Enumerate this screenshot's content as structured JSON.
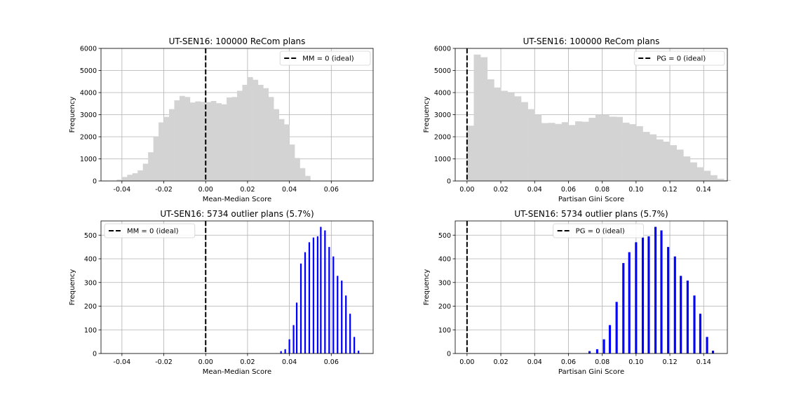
{
  "chart_data": [
    {
      "type": "histogram",
      "title": "UT-SEN16: 100000 ReCom plans",
      "xlabel": "Mean-Median Score",
      "ylabel": "Frequency",
      "xlim": [
        -0.05,
        0.08
      ],
      "ylim": [
        0,
        6000
      ],
      "xticks": [
        "-0.04",
        "-0.02",
        "0.00",
        "0.02",
        "0.04",
        "0.06"
      ],
      "yticks": [
        "0",
        "1000",
        "2000",
        "3000",
        "4000",
        "5000",
        "6000"
      ],
      "grid": true,
      "legend": {
        "label": "MM = 0 (ideal)",
        "placement": "top-right"
      },
      "reference_line_x": 0,
      "bar_color": "#d3d3d3",
      "bin_start": -0.045,
      "bin_width": 0.0025,
      "values": [
        10,
        60,
        180,
        280,
        350,
        480,
        780,
        1300,
        2000,
        2650,
        2900,
        3250,
        3650,
        3850,
        3800,
        3550,
        3600,
        3580,
        3570,
        3620,
        3520,
        3470,
        3780,
        3800,
        4080,
        4350,
        4700,
        4580,
        4350,
        4200,
        3800,
        3250,
        2800,
        2560,
        1650,
        1040,
        580,
        230,
        10
      ]
    },
    {
      "type": "histogram",
      "title": "UT-SEN16: 100000 ReCom plans",
      "xlabel": "Partisan Gini Score",
      "ylabel": "Frequency",
      "xlim": [
        -0.007,
        0.154
      ],
      "ylim": [
        0,
        6000
      ],
      "xticks": [
        "0.00",
        "0.02",
        "0.04",
        "0.06",
        "0.08",
        "0.10",
        "0.12",
        "0.14"
      ],
      "yticks": [
        "0",
        "1000",
        "2000",
        "3000",
        "4000",
        "5000",
        "6000"
      ],
      "grid": true,
      "legend": {
        "label": "PG = 0 (ideal)",
        "placement": "top-right"
      },
      "reference_line_x": 0,
      "bar_color": "#d3d3d3",
      "bin_start": 0.0,
      "bin_width": 0.004,
      "values": [
        2500,
        5720,
        5600,
        4600,
        4230,
        4080,
        3990,
        3830,
        3570,
        3250,
        3000,
        2620,
        2630,
        2580,
        2660,
        2530,
        2700,
        2680,
        2860,
        2990,
        2990,
        2910,
        2900,
        2640,
        2570,
        2480,
        2220,
        2110,
        1880,
        1780,
        1620,
        1420,
        1110,
        840,
        620,
        460,
        260,
        100,
        40
      ]
    },
    {
      "type": "bar",
      "title": "UT-SEN16: 5734 outlier plans (5.7%)",
      "xlabel": "Mean-Median Score",
      "ylabel": "Frequency",
      "xlim": [
        -0.05,
        0.08
      ],
      "ylim": [
        0,
        560
      ],
      "xticks": [
        "-0.04",
        "-0.02",
        "0.00",
        "0.02",
        "0.04",
        "0.06"
      ],
      "yticks": [
        "0",
        "100",
        "200",
        "300",
        "400",
        "500"
      ],
      "grid": true,
      "legend": {
        "label": "MM = 0 (ideal)",
        "placement": "top-left"
      },
      "reference_line_x": 0,
      "bar_color": "#0000ff",
      "bar_width": 0.00075,
      "x": [
        0.036,
        0.038,
        0.04,
        0.042,
        0.0435,
        0.0455,
        0.0475,
        0.0495,
        0.0515,
        0.0535,
        0.055,
        0.057,
        0.059,
        0.061,
        0.063,
        0.065,
        0.067,
        0.069,
        0.071,
        0.073
      ],
      "values": [
        10,
        18,
        60,
        120,
        215,
        380,
        428,
        470,
        490,
        495,
        535,
        520,
        450,
        410,
        328,
        308,
        245,
        168,
        70,
        12
      ]
    },
    {
      "type": "bar",
      "title": "UT-SEN16: 5734 outlier plans (5.7%)",
      "xlabel": "Partisan Gini Score",
      "ylabel": "Frequency",
      "xlim": [
        -0.007,
        0.154
      ],
      "ylim": [
        0,
        560
      ],
      "xticks": [
        "0.00",
        "0.02",
        "0.04",
        "0.06",
        "0.08",
        "0.10",
        "0.12",
        "0.14"
      ],
      "yticks": [
        "0",
        "100",
        "200",
        "300",
        "400",
        "500"
      ],
      "grid": true,
      "legend": {
        "label": "PG = 0 (ideal)",
        "placement": "top-center"
      },
      "reference_line_x": 0,
      "bar_color": "#0000ff",
      "bar_width": 0.0013,
      "x": [
        0.0725,
        0.077,
        0.081,
        0.0845,
        0.0885,
        0.0925,
        0.096,
        0.1,
        0.104,
        0.1075,
        0.1115,
        0.115,
        0.119,
        0.123,
        0.1265,
        0.1305,
        0.1345,
        0.138,
        0.142,
        0.1455
      ],
      "values": [
        10,
        18,
        60,
        120,
        218,
        382,
        428,
        470,
        490,
        495,
        535,
        520,
        450,
        410,
        328,
        308,
        245,
        168,
        70,
        12
      ]
    }
  ]
}
